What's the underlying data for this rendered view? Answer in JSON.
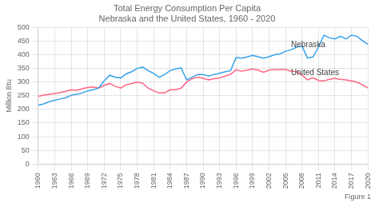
{
  "chart_data": {
    "type": "line",
    "title": "Total Energy Consumption Per Capita",
    "subtitle": "Nebraska and the United States, 1960 - 2020",
    "y_label": "Million Btu",
    "caption": "Figure 1",
    "x": [
      1960,
      1961,
      1962,
      1963,
      1964,
      1965,
      1966,
      1967,
      1968,
      1969,
      1970,
      1971,
      1972,
      1973,
      1974,
      1975,
      1976,
      1977,
      1978,
      1979,
      1980,
      1981,
      1982,
      1983,
      1984,
      1985,
      1986,
      1987,
      1988,
      1989,
      1990,
      1991,
      1992,
      1993,
      1994,
      1995,
      1996,
      1997,
      1998,
      1999,
      2000,
      2001,
      2002,
      2003,
      2004,
      2005,
      2006,
      2007,
      2008,
      2009,
      2010,
      2011,
      2012,
      2013,
      2014,
      2015,
      2016,
      2017,
      2018,
      2019,
      2020
    ],
    "series": [
      {
        "name": "Nebraska",
        "values": [
          215,
          220,
          228,
          233,
          238,
          243,
          252,
          255,
          260,
          268,
          272,
          278,
          305,
          325,
          318,
          315,
          330,
          338,
          350,
          355,
          342,
          332,
          318,
          328,
          342,
          348,
          352,
          308,
          318,
          328,
          328,
          322,
          328,
          332,
          338,
          342,
          390,
          388,
          392,
          398,
          393,
          388,
          393,
          400,
          403,
          413,
          418,
          428,
          432,
          388,
          392,
          428,
          472,
          462,
          458,
          468,
          458,
          472,
          468,
          452,
          438
        ]
      },
      {
        "name": "United States",
        "values": [
          248,
          252,
          255,
          258,
          262,
          266,
          272,
          270,
          276,
          280,
          282,
          278,
          288,
          295,
          285,
          278,
          290,
          295,
          300,
          296,
          278,
          268,
          260,
          260,
          272,
          272,
          278,
          300,
          312,
          318,
          314,
          308,
          312,
          315,
          322,
          328,
          345,
          340,
          344,
          348,
          344,
          336,
          344,
          346,
          346,
          346,
          340,
          338,
          326,
          308,
          316,
          306,
          304,
          310,
          314,
          310,
          308,
          304,
          300,
          290,
          278
        ]
      }
    ],
    "annotations": [
      {
        "text": "Nebraska",
        "x": 2006,
        "y": 420
      },
      {
        "text": "United States",
        "x": 2006,
        "y": 318
      }
    ],
    "xlim": [
      1960,
      2020
    ],
    "ylim": [
      0,
      500
    ],
    "xticks": [
      1960,
      1963,
      1966,
      1969,
      1972,
      1975,
      1978,
      1981,
      1984,
      1987,
      1990,
      1993,
      1996,
      1999,
      2002,
      2005,
      2008,
      2011,
      2014,
      2017,
      2020
    ],
    "yticks": [
      0,
      50,
      100,
      150,
      200,
      250,
      300,
      350,
      400,
      450,
      500
    ],
    "grid": true
  }
}
